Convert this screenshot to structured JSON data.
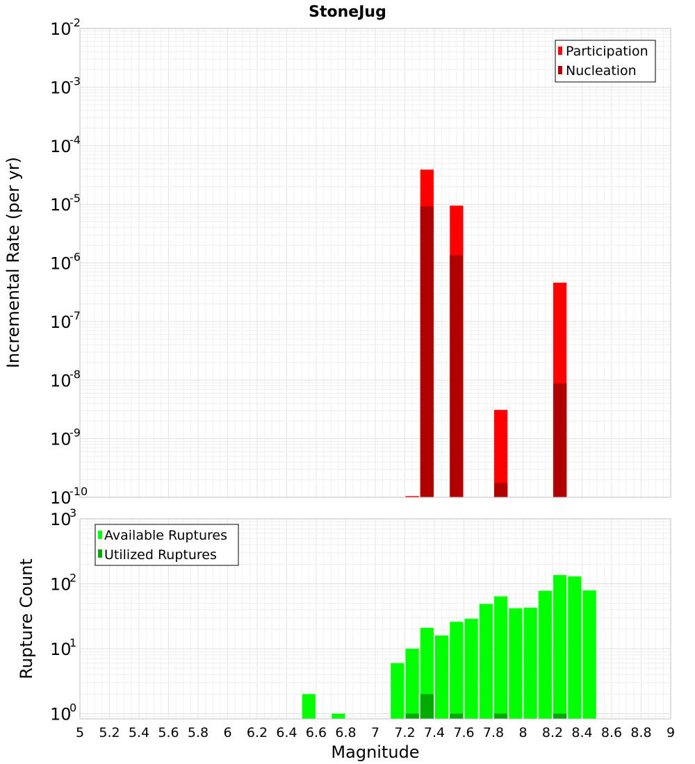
{
  "chart_data": {
    "type": "bar",
    "title": "StoneJug",
    "xlabel": "Magnitude",
    "xlim": [
      5,
      9
    ],
    "x_ticks": [
      "5",
      "5.2",
      "5.4",
      "5.6",
      "5.8",
      "6",
      "6.2",
      "6.4",
      "6.6",
      "6.8",
      "7",
      "7.2",
      "7.4",
      "7.6",
      "7.8",
      "8",
      "8.2",
      "8.4",
      "8.6",
      "8.8",
      "9"
    ],
    "bin_width": 0.1,
    "panels": [
      {
        "ylabel": "Incremental Rate (per yr)",
        "yscale": "log",
        "ylim_exp": [
          -10,
          -2
        ],
        "y_tick_base": "10",
        "y_tick_exponents": [
          "-10",
          "-9",
          "-8",
          "-7",
          "-6",
          "-5",
          "-4",
          "-3",
          "-2"
        ],
        "legend": {
          "position": "top-right",
          "entries": [
            "Participation",
            "Nucleation"
          ]
        },
        "series": [
          {
            "name": "Participation",
            "color": "#ff0000",
            "x": [
              7.25,
              7.35,
              7.55,
              7.85,
              8.25
            ],
            "values": [
              1.05e-10,
              3.9e-05,
              9.5e-06,
              3.1e-09,
              4.6e-07
            ]
          },
          {
            "name": "Nucleation",
            "color": "#b00000",
            "x": [
              7.35,
              7.55,
              7.85,
              8.25
            ],
            "values": [
              9.2e-06,
              1.35e-06,
              1.75e-10,
              8.8e-09
            ]
          }
        ]
      },
      {
        "ylabel": "Rupture Count",
        "yscale": "log",
        "ylim_exp": [
          -0.08,
          3
        ],
        "y_tick_base": "10",
        "y_tick_exponents": [
          "0",
          "1",
          "2",
          "3"
        ],
        "legend": {
          "position": "top-left",
          "entries": [
            "Available Ruptures",
            "Utilized Ruptures"
          ]
        },
        "series": [
          {
            "name": "Available Ruptures",
            "color": "#00ff00",
            "x": [
              6.55,
              6.75,
              7.15,
              7.25,
              7.35,
              7.45,
              7.55,
              7.65,
              7.75,
              7.85,
              7.95,
              8.05,
              8.15,
              8.25,
              8.35,
              8.45
            ],
            "values": [
              2,
              1,
              6,
              10,
              21,
              16,
              26,
              29,
              49,
              64,
              42,
              43,
              78,
              136,
              130,
              79
            ]
          },
          {
            "name": "Utilized Ruptures",
            "color": "#00aa00",
            "x": [
              7.25,
              7.35,
              7.55,
              7.85,
              8.25
            ],
            "values": [
              1,
              2,
              1,
              1,
              1
            ]
          }
        ]
      }
    ]
  }
}
